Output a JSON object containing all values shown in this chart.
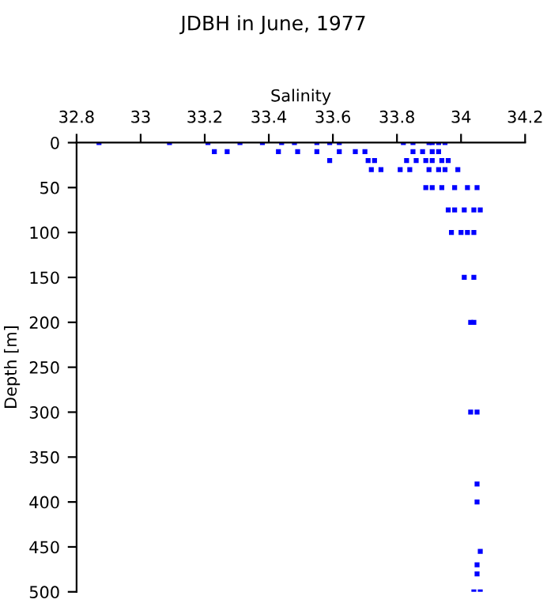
{
  "chart_data": {
    "type": "scatter",
    "title": "JDBH in June, 1977",
    "xlabel": "Salinity",
    "ylabel": "Depth [m]",
    "xlim": [
      32.8,
      34.2
    ],
    "xticks": [
      {
        "value": 32.8,
        "label": "32.8"
      },
      33,
      {
        "value": 33.2,
        "label": "33.2"
      },
      {
        "value": 33.4,
        "label": "33.4"
      },
      {
        "value": 33.6,
        "label": "33.6"
      },
      {
        "value": 33.8,
        "label": "33.8"
      },
      34,
      {
        "value": 34.2,
        "label": "34.2"
      }
    ],
    "ylim": [
      500,
      0
    ],
    "yticks": [
      0,
      50,
      100,
      150,
      200,
      250,
      300,
      350,
      400,
      450,
      500
    ],
    "marker": "square",
    "grid": false,
    "series": [
      {
        "color": "#0000ff",
        "x": [
          32.87,
          33.09,
          33.21,
          33.31,
          33.38,
          33.44,
          33.48,
          33.55,
          33.59,
          33.62,
          33.82,
          33.85,
          33.9,
          33.91,
          33.93,
          33.95,
          33.23,
          33.27,
          33.43,
          33.49,
          33.55,
          33.62,
          33.67,
          33.7,
          33.85,
          33.88,
          33.91,
          33.93,
          33.59,
          33.71,
          33.73,
          33.83,
          33.86,
          33.89,
          33.91,
          33.94,
          33.96,
          33.72,
          33.75,
          33.81,
          33.84,
          33.9,
          33.93,
          33.95,
          33.99,
          33.89,
          33.91,
          33.94,
          33.98,
          34.02,
          34.05,
          33.96,
          33.98,
          34.01,
          34.04,
          34.06,
          33.97,
          34.0,
          34.02,
          34.04,
          34.01,
          34.04,
          34.03,
          34.04,
          34.03,
          34.05,
          34.05,
          34.05,
          34.06,
          34.05,
          34.05,
          34.04,
          34.06
        ],
        "values": [
          0,
          0,
          0,
          0,
          0,
          0,
          0,
          0,
          0,
          0,
          0,
          0,
          0,
          0,
          0,
          0,
          10,
          10,
          10,
          10,
          10,
          10,
          10,
          10,
          10,
          10,
          10,
          10,
          20,
          20,
          20,
          20,
          20,
          20,
          20,
          20,
          20,
          30,
          30,
          30,
          30,
          30,
          30,
          30,
          30,
          50,
          50,
          50,
          50,
          50,
          50,
          75,
          75,
          75,
          75,
          75,
          100,
          100,
          100,
          100,
          150,
          150,
          200,
          200,
          300,
          300,
          380,
          400,
          455,
          470,
          480,
          500,
          500
        ]
      }
    ]
  }
}
